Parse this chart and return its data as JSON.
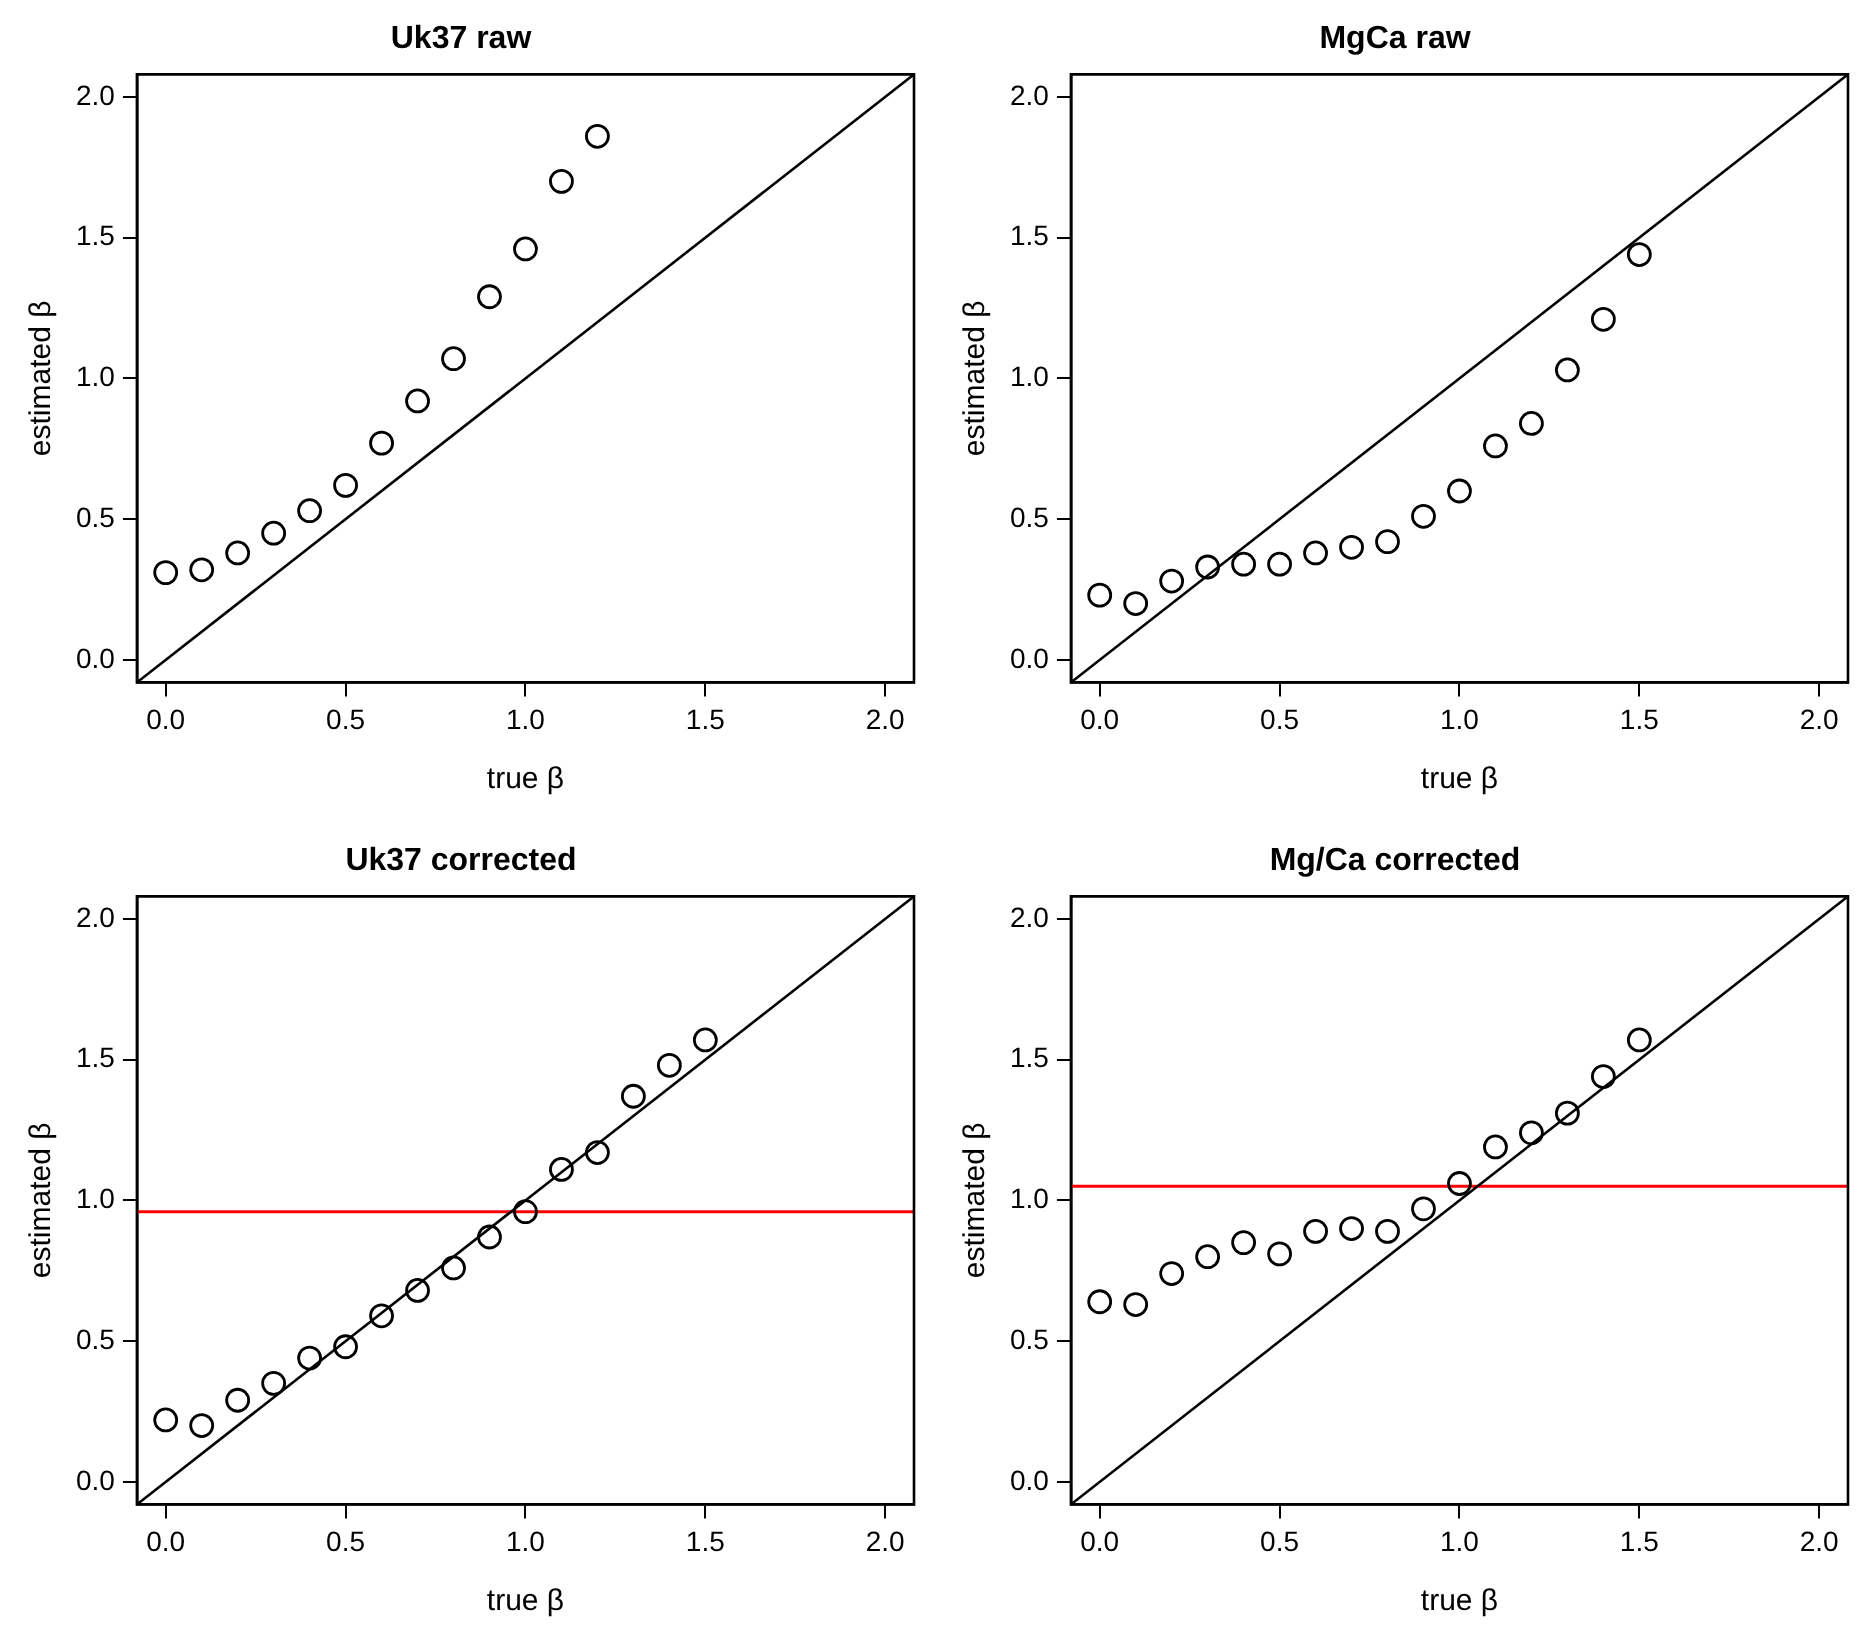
{
  "chart_data": [
    {
      "type": "scatter",
      "title": "Uk37 raw",
      "xlabel": "true β",
      "ylabel": "estimated β",
      "xlim": [
        -0.08,
        2.08
      ],
      "ylim": [
        -0.08,
        2.08
      ],
      "xticks": [
        {
          "value": 0,
          "label": "0.0"
        },
        {
          "value": 0.5,
          "label": "0.5"
        },
        {
          "value": 1,
          "label": "1.0"
        },
        {
          "value": 1.5,
          "label": "1.5"
        },
        {
          "value": 2,
          "label": "2.0"
        }
      ],
      "yticks": [
        {
          "value": 0,
          "label": "0.0"
        },
        {
          "value": 0.5,
          "label": "0.5"
        },
        {
          "value": 1,
          "label": "1.0"
        },
        {
          "value": 1.5,
          "label": "1.5"
        },
        {
          "value": 2,
          "label": "2.0"
        }
      ],
      "series": [
        {
          "type": "scatter",
          "marker": "circle",
          "color": "#000000",
          "x": [
            0,
            0.1,
            0.2,
            0.3,
            0.4,
            0.5,
            0.6,
            0.7,
            0.8,
            0.9,
            1.0,
            1.1,
            1.2
          ],
          "values": [
            0.31,
            0.32,
            0.38,
            0.45,
            0.53,
            0.62,
            0.77,
            0.92,
            1.07,
            1.29,
            1.46,
            1.7,
            1.86
          ]
        },
        {
          "type": "line",
          "color": "#000000",
          "x": [
            -0.08,
            2.08
          ],
          "values": [
            -0.08,
            2.08
          ]
        }
      ]
    },
    {
      "type": "scatter",
      "title": "MgCa raw",
      "xlabel": "true β",
      "ylabel": "estimated β",
      "xlim": [
        -0.08,
        2.08
      ],
      "ylim": [
        -0.08,
        2.08
      ],
      "xticks": [
        {
          "value": 0,
          "label": "0.0"
        },
        {
          "value": 0.5,
          "label": "0.5"
        },
        {
          "value": 1,
          "label": "1.0"
        },
        {
          "value": 1.5,
          "label": "1.5"
        },
        {
          "value": 2,
          "label": "2.0"
        }
      ],
      "yticks": [
        {
          "value": 0,
          "label": "0.0"
        },
        {
          "value": 0.5,
          "label": "0.5"
        },
        {
          "value": 1,
          "label": "1.0"
        },
        {
          "value": 1.5,
          "label": "1.5"
        },
        {
          "value": 2,
          "label": "2.0"
        }
      ],
      "series": [
        {
          "type": "scatter",
          "color": "#000000",
          "x": [
            0,
            0.1,
            0.2,
            0.3,
            0.4,
            0.5,
            0.6,
            0.7,
            0.8,
            0.9,
            1.0,
            1.1,
            1.2,
            1.3,
            1.4,
            1.5
          ],
          "marker": "circle",
          "values": [
            0.23,
            0.2,
            0.28,
            0.33,
            0.34,
            0.34,
            0.38,
            0.4,
            0.42,
            0.51,
            0.6,
            0.76,
            0.84,
            1.03,
            1.21,
            1.44
          ]
        },
        {
          "type": "line",
          "color": "#000000",
          "x": [
            -0.08,
            2.08
          ],
          "values": [
            -0.08,
            2.08
          ]
        }
      ]
    },
    {
      "type": "scatter",
      "title": "Uk37 corrected",
      "xlabel": "true β",
      "ylabel": "estimated β",
      "xlim": [
        -0.08,
        2.08
      ],
      "ylim": [
        -0.08,
        2.08
      ],
      "xticks": [
        {
          "value": 0,
          "label": "0.0"
        },
        {
          "value": 0.5,
          "label": "0.5"
        },
        {
          "value": 1,
          "label": "1.0"
        },
        {
          "value": 1.5,
          "label": "1.5"
        },
        {
          "value": 2,
          "label": "2.0"
        }
      ],
      "yticks": [
        {
          "value": 0,
          "label": "0.0"
        },
        {
          "value": 0.5,
          "label": "0.5"
        },
        {
          "value": 1,
          "label": "1.0"
        },
        {
          "value": 1.5,
          "label": "1.5"
        },
        {
          "value": 2,
          "label": "2.0"
        }
      ],
      "ref_lines": [
        {
          "axis": "y",
          "value": 0.96,
          "color": "#ff0000"
        }
      ],
      "series": [
        {
          "type": "scatter",
          "color": "#000000",
          "x": [
            0,
            0.1,
            0.2,
            0.3,
            0.4,
            0.5,
            0.6,
            0.7,
            0.8,
            0.9,
            1.0,
            1.1,
            1.2,
            1.3,
            1.4,
            1.5
          ],
          "marker": "circle",
          "values": [
            0.22,
            0.2,
            0.29,
            0.35,
            0.44,
            0.48,
            0.59,
            0.68,
            0.76,
            0.87,
            0.96,
            1.11,
            1.17,
            1.37,
            1.48,
            1.57
          ]
        },
        {
          "type": "line",
          "color": "#000000",
          "x": [
            -0.08,
            2.08
          ],
          "values": [
            -0.08,
            2.08
          ]
        }
      ]
    },
    {
      "type": "scatter",
      "title": "Mg/Ca corrected",
      "xlabel": "true β",
      "ylabel": "estimated β",
      "xlim": [
        -0.08,
        2.08
      ],
      "ylim": [
        -0.08,
        2.08
      ],
      "xticks": [
        {
          "value": 0,
          "label": "0.0"
        },
        {
          "value": 0.5,
          "label": "0.5"
        },
        {
          "value": 1,
          "label": "1.0"
        },
        {
          "value": 1.5,
          "label": "1.5"
        },
        {
          "value": 2,
          "label": "2.0"
        }
      ],
      "yticks": [
        {
          "value": 0,
          "label": "0.0"
        },
        {
          "value": 0.5,
          "label": "0.5"
        },
        {
          "value": 1,
          "label": "1.0"
        },
        {
          "value": 1.5,
          "label": "1.5"
        },
        {
          "value": 2,
          "label": "2.0"
        }
      ],
      "ref_lines": [
        {
          "axis": "y",
          "value": 1.05,
          "color": "#ff0000"
        }
      ],
      "series": [
        {
          "type": "scatter",
          "color": "#000000",
          "x": [
            0,
            0.1,
            0.2,
            0.3,
            0.4,
            0.5,
            0.6,
            0.7,
            0.8,
            0.9,
            1.0,
            1.1,
            1.2,
            1.3,
            1.4,
            1.5
          ],
          "marker": "circle",
          "values": [
            0.64,
            0.63,
            0.74,
            0.8,
            0.85,
            0.81,
            0.89,
            0.9,
            0.89,
            0.97,
            1.06,
            1.19,
            1.24,
            1.31,
            1.44,
            1.57
          ]
        },
        {
          "type": "line",
          "color": "#000000",
          "x": [
            -0.08,
            2.08
          ],
          "values": [
            -0.08,
            2.08
          ]
        }
      ]
    }
  ]
}
